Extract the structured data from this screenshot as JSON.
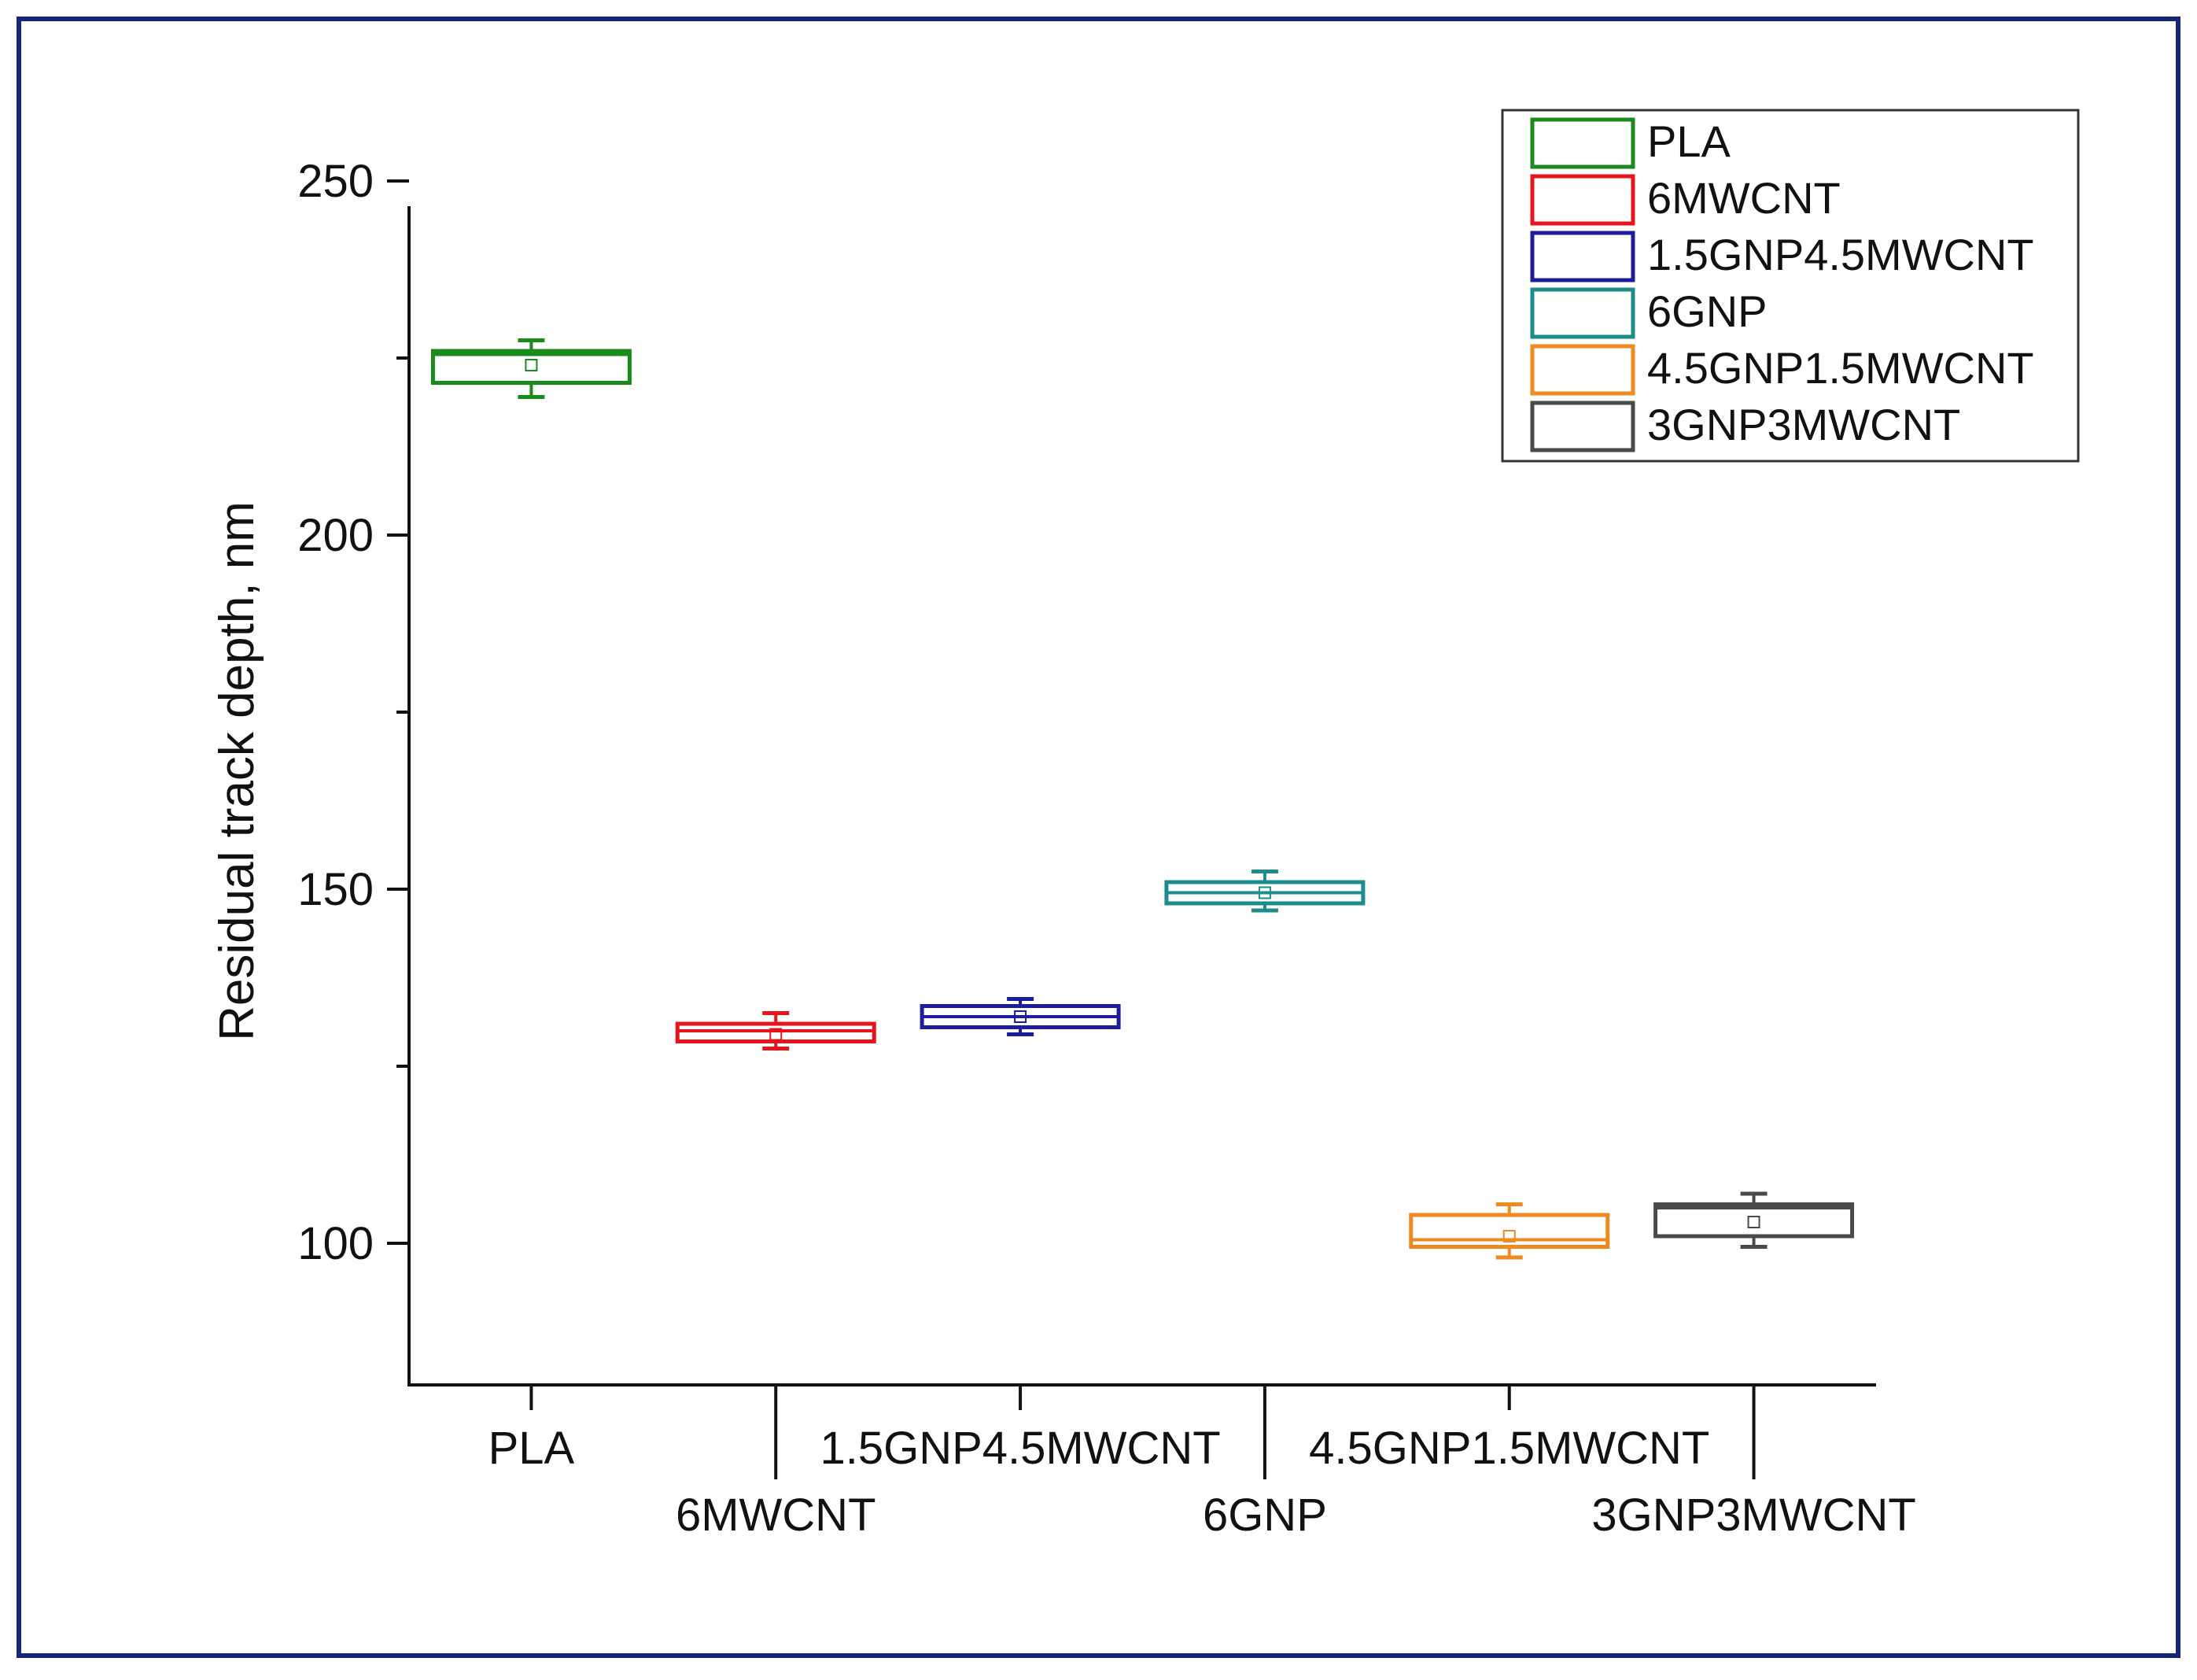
{
  "chart_data": {
    "type": "box",
    "title": "",
    "xlabel": "",
    "ylabel": "Residual track depth, nm",
    "ylim": [
      80,
      250
    ],
    "yticks_major": [
      100,
      150,
      200,
      250
    ],
    "yticks_minor": [
      125,
      175,
      225
    ],
    "categories": [
      "PLA",
      "6MWCNT",
      "1.5GNP4.5MWCNT",
      "6GNP",
      "4.5GNP1.5MWCNT",
      "3GNP3MWCNT"
    ],
    "series": [
      {
        "name": "PLA",
        "color": "#1a8a1a",
        "whisker_low": 219.5,
        "q1": 221.5,
        "median": 225.5,
        "mean": 224,
        "q3": 226,
        "whisker_high": 227.5
      },
      {
        "name": "6MWCNT",
        "color": "#e8141b",
        "whisker_low": 127.5,
        "q1": 128.5,
        "median": 130,
        "mean": 129.5,
        "q3": 131,
        "whisker_high": 132.5
      },
      {
        "name": "1.5GNP4.5MWCNT",
        "color": "#1c1c9c",
        "whisker_low": 129.5,
        "q1": 130.5,
        "median": 132,
        "mean": 132,
        "q3": 133.5,
        "whisker_high": 134.5
      },
      {
        "name": "6GNP",
        "color": "#1c8c8c",
        "whisker_low": 147,
        "q1": 148,
        "median": 149.5,
        "mean": 149.5,
        "q3": 151,
        "whisker_high": 152.5
      },
      {
        "name": "4.5GNP1.5MWCNT",
        "color": "#f08a1e",
        "whisker_low": 98,
        "q1": 99.5,
        "median": 100.5,
        "mean": 101,
        "q3": 104,
        "whisker_high": 105.5
      },
      {
        "name": "3GNP3MWCNT",
        "color": "#4a4a4a",
        "whisker_low": 99.5,
        "q1": 101,
        "median": 105,
        "mean": 103,
        "q3": 105.5,
        "whisker_high": 107
      }
    ],
    "legend": {
      "position": "top-right",
      "entries": [
        "PLA",
        "6MWCNT",
        "1.5GNP4.5MWCNT",
        "6GNP",
        "4.5GNP1.5MWCNT",
        "3GNP3MWCNT"
      ]
    }
  },
  "colors": {
    "frame_border": "#16257a",
    "axis": "#111111",
    "background": "#ffffff"
  }
}
